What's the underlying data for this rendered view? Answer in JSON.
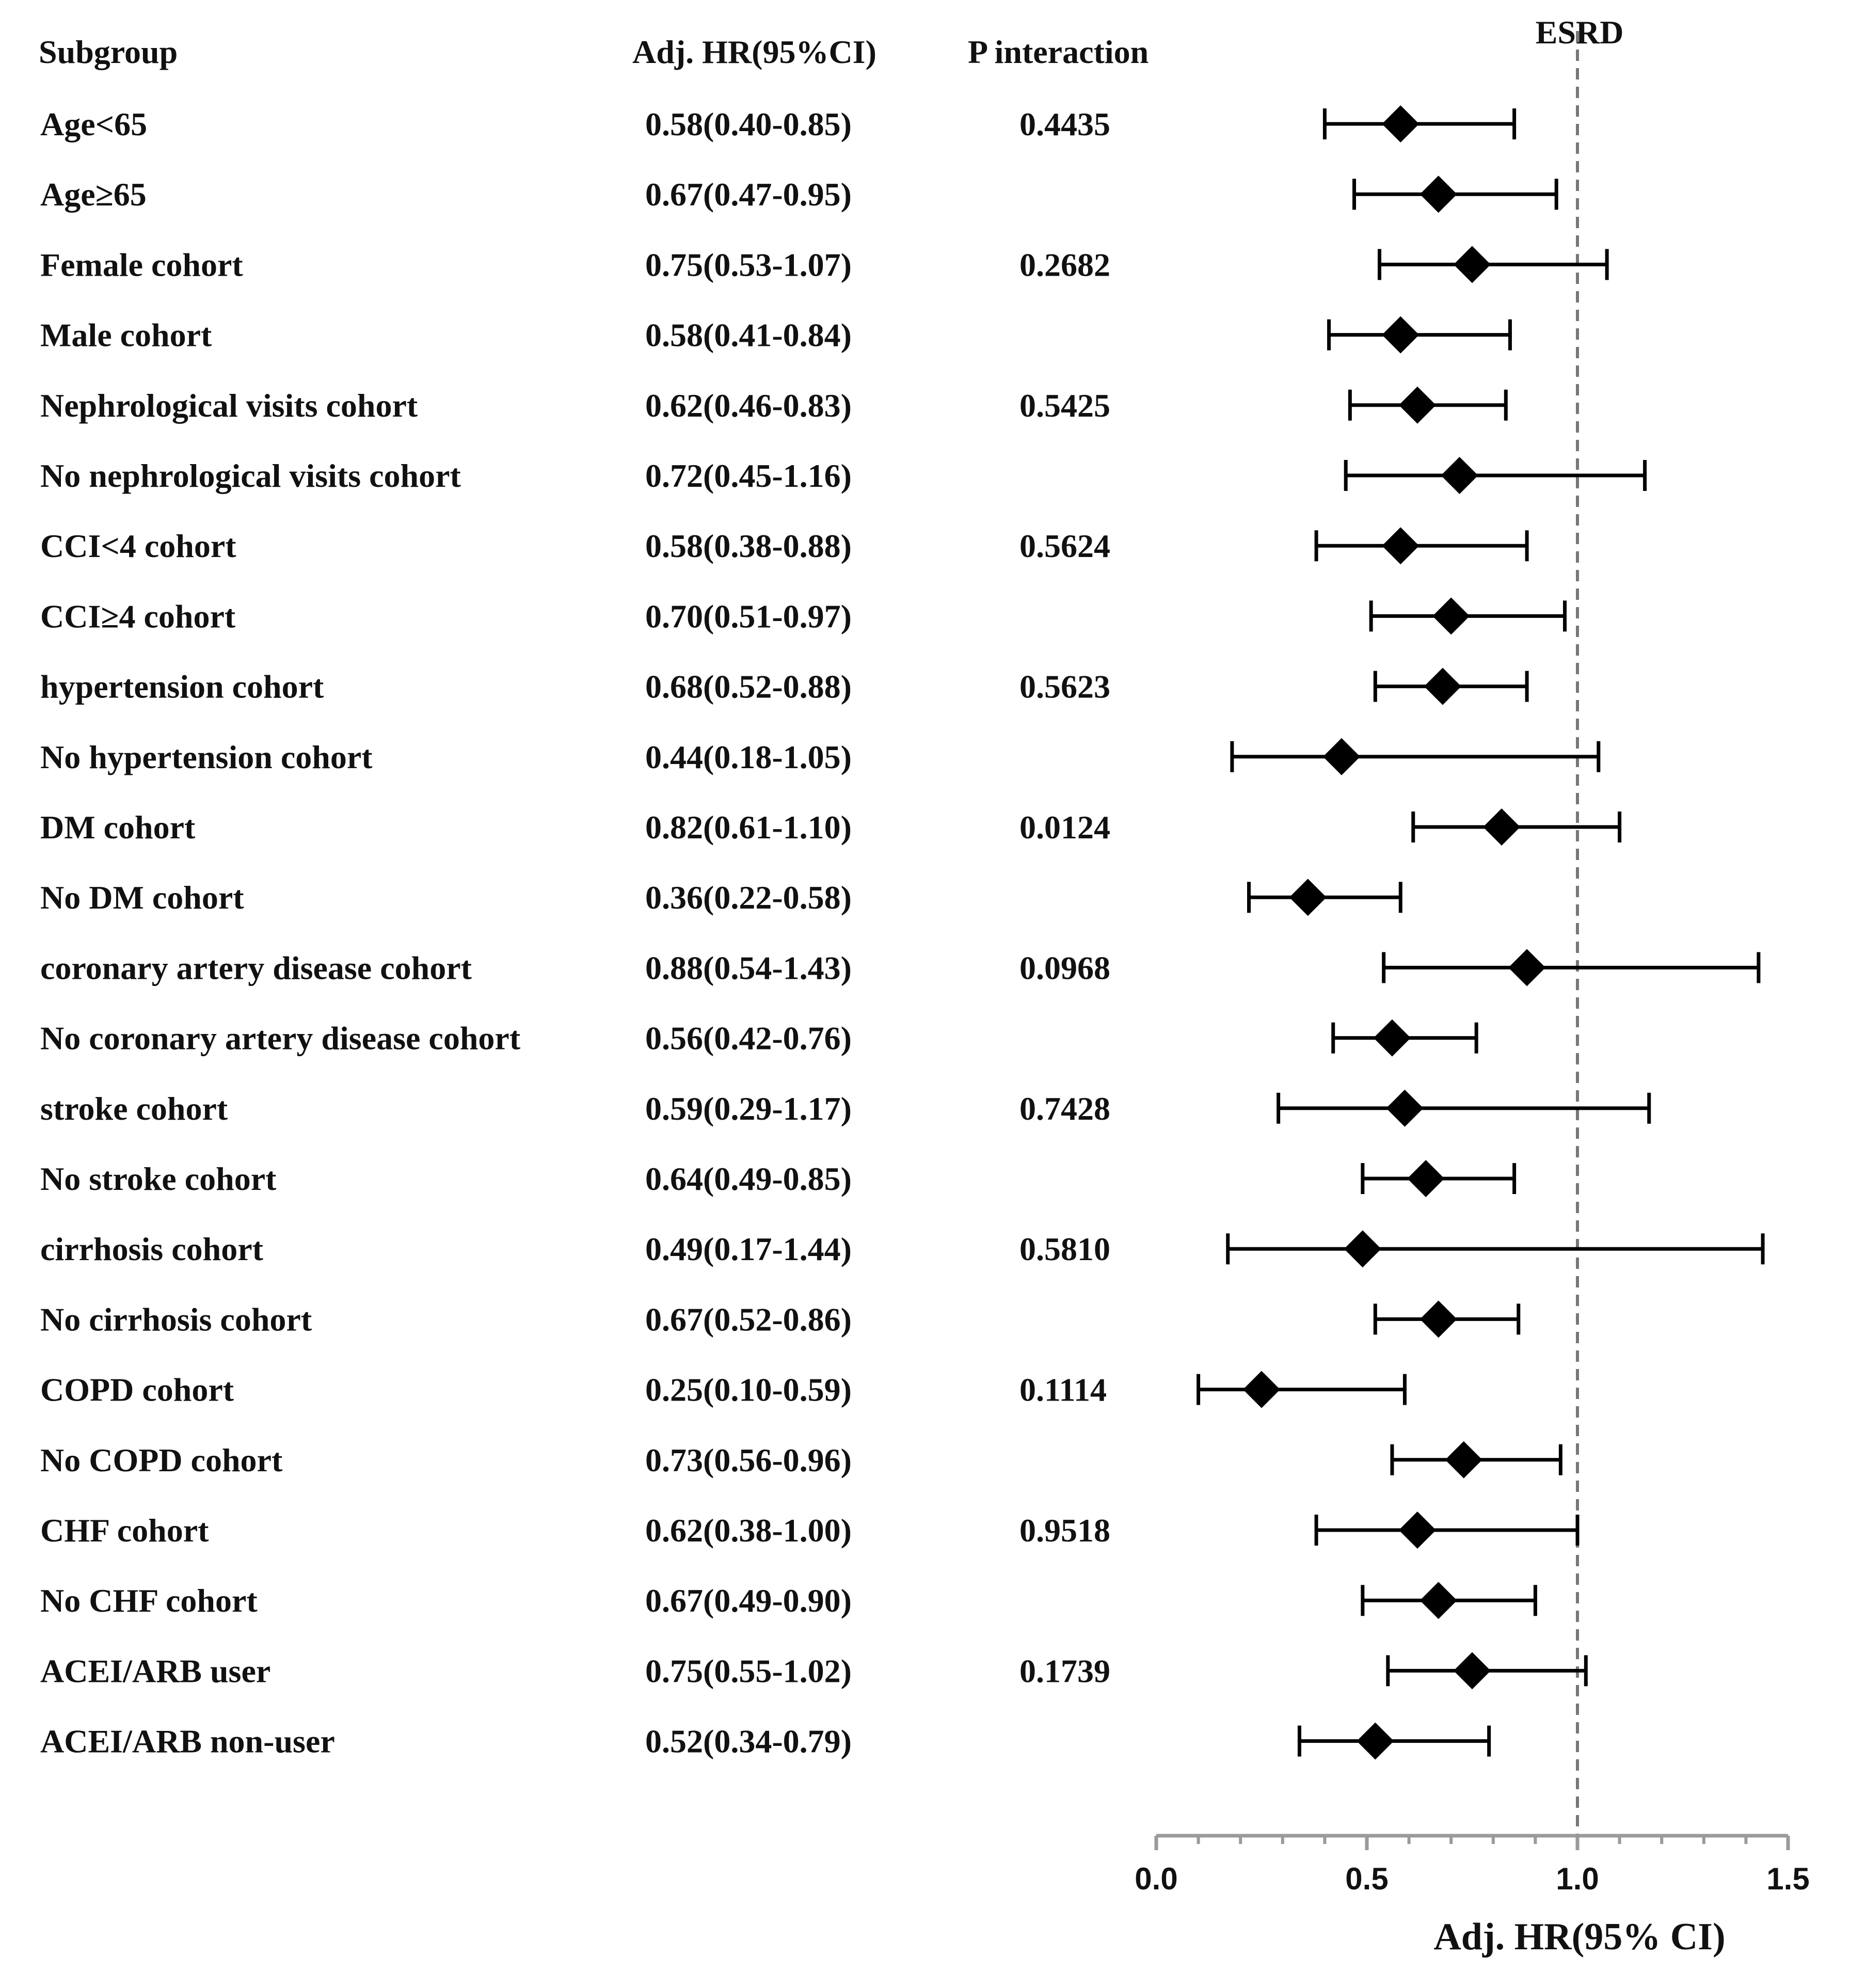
{
  "headers": {
    "subgroup": "Subgroup",
    "hr": "Adj. HR(95%CI)",
    "p": "P interaction"
  },
  "chart_data": {
    "type": "forest",
    "title": "ESRD",
    "xlabel": "Adj. HR(95% CI)",
    "xlim": [
      0.0,
      1.5
    ],
    "xticks": [
      0.0,
      0.5,
      1.0,
      1.5
    ],
    "xtick_labels": [
      "0.0",
      "0.5",
      "1.0",
      "1.5"
    ],
    "reference_line": 1.0,
    "rows": [
      {
        "label": "Age<65",
        "hr_text": "0.58(0.40-0.85)",
        "p": "0.4435",
        "hr": 0.58,
        "lo": 0.4,
        "hi": 0.85
      },
      {
        "label": "Age≥65",
        "hr_text": "0.67(0.47-0.95)",
        "p": "",
        "hr": 0.67,
        "lo": 0.47,
        "hi": 0.95
      },
      {
        "label": "Female cohort",
        "hr_text": "0.75(0.53-1.07)",
        "p": "0.2682",
        "hr": 0.75,
        "lo": 0.53,
        "hi": 1.07
      },
      {
        "label": "Male cohort",
        "hr_text": "0.58(0.41-0.84)",
        "p": "",
        "hr": 0.58,
        "lo": 0.41,
        "hi": 0.84
      },
      {
        "label": "Nephrological visits cohort",
        "hr_text": "0.62(0.46-0.83)",
        "p": "0.5425",
        "hr": 0.62,
        "lo": 0.46,
        "hi": 0.83
      },
      {
        "label": "No nephrological visits cohort",
        "hr_text": "0.72(0.45-1.16)",
        "p": "",
        "hr": 0.72,
        "lo": 0.45,
        "hi": 1.16
      },
      {
        "label": "CCI<4 cohort",
        "hr_text": "0.58(0.38-0.88)",
        "p": "0.5624",
        "hr": 0.58,
        "lo": 0.38,
        "hi": 0.88
      },
      {
        "label": "CCI≥4 cohort",
        "hr_text": "0.70(0.51-0.97)",
        "p": "",
        "hr": 0.7,
        "lo": 0.51,
        "hi": 0.97
      },
      {
        "label": "hypertension cohort",
        "hr_text": "0.68(0.52-0.88)",
        "p": "0.5623",
        "hr": 0.68,
        "lo": 0.52,
        "hi": 0.88
      },
      {
        "label": "No hypertension cohort",
        "hr_text": "0.44(0.18-1.05)",
        "p": "",
        "hr": 0.44,
        "lo": 0.18,
        "hi": 1.05
      },
      {
        "label": "DM cohort",
        "hr_text": "0.82(0.61-1.10)",
        "p": "0.0124",
        "hr": 0.82,
        "lo": 0.61,
        "hi": 1.1
      },
      {
        "label": "No DM cohort",
        "hr_text": "0.36(0.22-0.58)",
        "p": "",
        "hr": 0.36,
        "lo": 0.22,
        "hi": 0.58
      },
      {
        "label": "coronary artery disease cohort",
        "hr_text": "0.88(0.54-1.43)",
        "p": "0.0968",
        "hr": 0.88,
        "lo": 0.54,
        "hi": 1.43
      },
      {
        "label": "No coronary artery disease cohort",
        "hr_text": "0.56(0.42-0.76)",
        "p": "",
        "hr": 0.56,
        "lo": 0.42,
        "hi": 0.76
      },
      {
        "label": "stroke cohort",
        "hr_text": "0.59(0.29-1.17)",
        "p": "0.7428",
        "hr": 0.59,
        "lo": 0.29,
        "hi": 1.17
      },
      {
        "label": "No stroke cohort",
        "hr_text": "0.64(0.49-0.85)",
        "p": "",
        "hr": 0.64,
        "lo": 0.49,
        "hi": 0.85
      },
      {
        "label": "cirrhosis cohort",
        "hr_text": "0.49(0.17-1.44)",
        "p": "0.5810",
        "hr": 0.49,
        "lo": 0.17,
        "hi": 1.44
      },
      {
        "label": "No cirrhosis cohort",
        "hr_text": "0.67(0.52-0.86)",
        "p": "",
        "hr": 0.67,
        "lo": 0.52,
        "hi": 0.86
      },
      {
        "label": "COPD cohort",
        "hr_text": "0.25(0.10-0.59)",
        "p": "0.1114",
        "hr": 0.25,
        "lo": 0.1,
        "hi": 0.59
      },
      {
        "label": "No COPD cohort",
        "hr_text": "0.73(0.56-0.96)",
        "p": "",
        "hr": 0.73,
        "lo": 0.56,
        "hi": 0.96
      },
      {
        "label": "CHF cohort",
        "hr_text": "0.62(0.38-1.00)",
        "p": "0.9518",
        "hr": 0.62,
        "lo": 0.38,
        "hi": 1.0
      },
      {
        "label": "No CHF cohort",
        "hr_text": "0.67(0.49-0.90)",
        "p": "",
        "hr": 0.67,
        "lo": 0.49,
        "hi": 0.9
      },
      {
        "label": "ACEI/ARB user",
        "hr_text": "0.75(0.55-1.02)",
        "p": "0.1739",
        "hr": 0.75,
        "lo": 0.55,
        "hi": 1.02
      },
      {
        "label": "ACEI/ARB non-user",
        "hr_text": "0.52(0.34-0.79)",
        "p": "",
        "hr": 0.52,
        "lo": 0.34,
        "hi": 0.79
      }
    ]
  }
}
